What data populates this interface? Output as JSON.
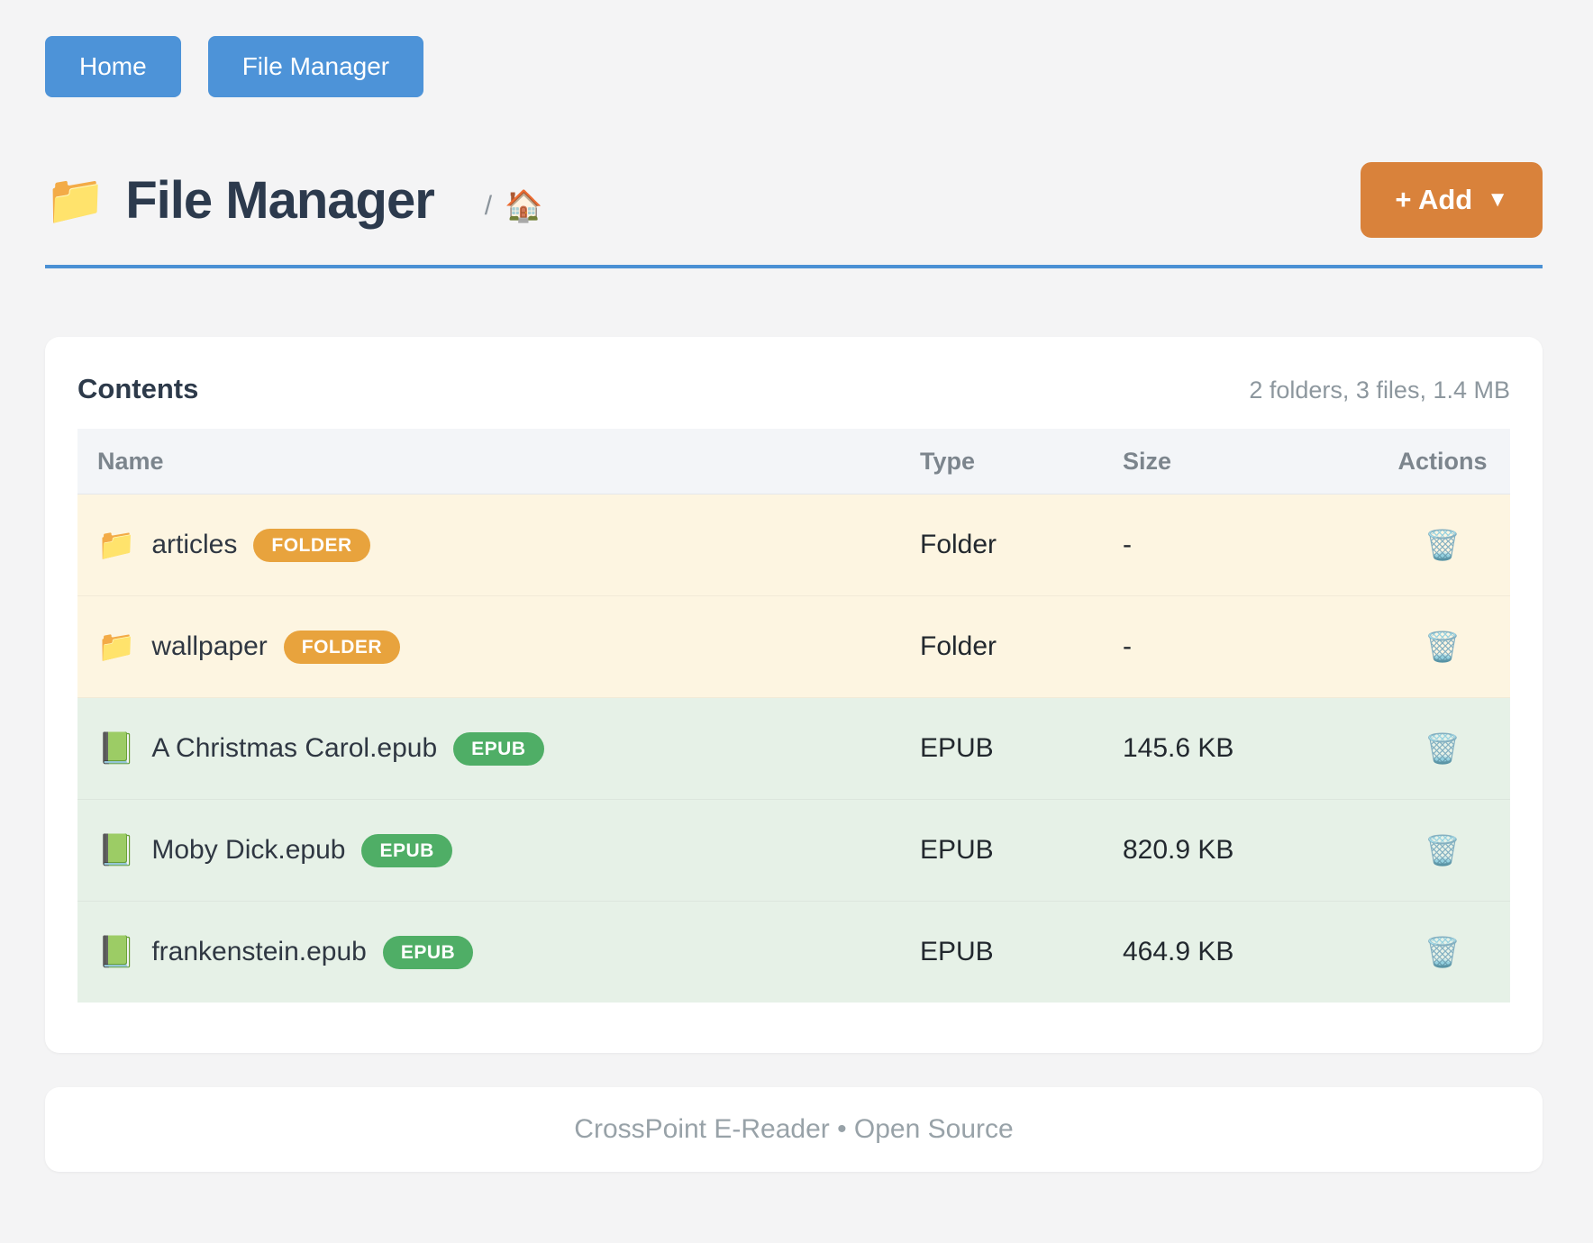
{
  "nav": {
    "buttons": [
      {
        "label": "Home"
      },
      {
        "label": "File Manager"
      }
    ]
  },
  "header": {
    "title_icon": "📁",
    "title": "File Manager",
    "breadcrumb_separator": "/",
    "breadcrumb_home_icon": "🏠",
    "add_button": {
      "label": "+ Add",
      "caret": "▼"
    }
  },
  "content": {
    "panel_title": "Contents",
    "summary": "2 folders, 3 files, 1.4 MB",
    "table": {
      "columns": [
        "Name",
        "Type",
        "Size",
        "Actions"
      ],
      "action_icon": "🗑️",
      "rows": [
        {
          "icon": "📁",
          "name": "articles",
          "badge": "FOLDER",
          "badge_type": "folder",
          "type": "Folder",
          "size": "-"
        },
        {
          "icon": "📁",
          "name": "wallpaper",
          "badge": "FOLDER",
          "badge_type": "folder",
          "type": "Folder",
          "size": "-"
        },
        {
          "icon": "📗",
          "name": "A Christmas Carol.epub",
          "badge": "EPUB",
          "badge_type": "epub",
          "type": "EPUB",
          "size": "145.6 KB"
        },
        {
          "icon": "📗",
          "name": "Moby Dick.epub",
          "badge": "EPUB",
          "badge_type": "epub",
          "type": "EPUB",
          "size": "820.9 KB"
        },
        {
          "icon": "📗",
          "name": "frankenstein.epub",
          "badge": "EPUB",
          "badge_type": "epub",
          "type": "EPUB",
          "size": "464.9 KB"
        }
      ]
    }
  },
  "footer": {
    "text": "CrossPoint E-Reader • Open Source"
  },
  "colors": {
    "accent_blue": "#4d93d8",
    "rule_blue": "#4a90d4",
    "accent_orange": "#d9823b",
    "badge_folder": "#e8a33d",
    "badge_epub": "#4fae66",
    "row_folder_bg": "#fdf5e1",
    "row_epub_bg": "#e6f1e7",
    "page_bg": "#f4f4f5"
  }
}
